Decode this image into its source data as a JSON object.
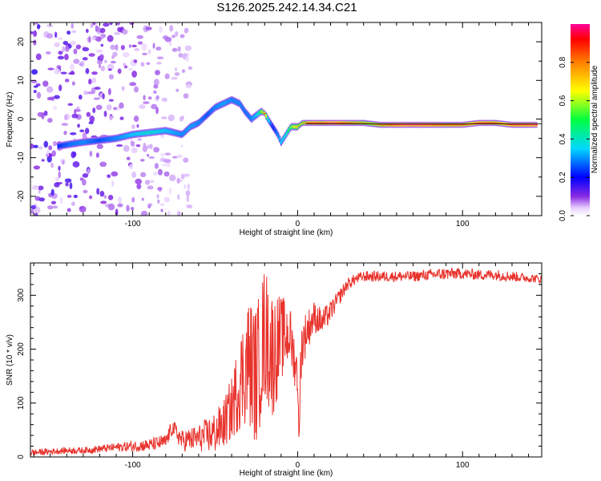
{
  "chart_data": [
    {
      "type": "heatmap",
      "title": "S126.2025.242.14.34.C21",
      "xlabel": "Height of straight line (km)",
      "ylabel": "Frequency (Hz)",
      "xlim": [
        -162,
        148
      ],
      "ylim": [
        -25,
        25
      ],
      "xticks": [
        -100,
        0,
        100
      ],
      "xtick_labels": [
        "-100",
        "0",
        "100"
      ],
      "yticks": [
        -20,
        -10,
        0,
        10,
        20
      ],
      "ytick_labels": [
        "-20",
        "-10",
        "0",
        "10",
        "20"
      ],
      "colorbar": {
        "label": "Normalized spectral amplitude",
        "range": [
          0,
          1
        ],
        "ticks": [
          0.0,
          0.2,
          0.4,
          0.6,
          0.8
        ],
        "tick_labels": [
          "0.0",
          "0.2",
          "0.4",
          "0.6",
          "0.8"
        ],
        "colormap": "rainbow"
      },
      "ridge": {
        "x": [
          -145,
          -138,
          -130,
          -120,
          -110,
          -100,
          -90,
          -80,
          -70,
          -65,
          -60,
          -55,
          -50,
          -45,
          -40,
          -35,
          -32,
          -28,
          -25,
          -22,
          -20,
          -18,
          -15,
          -12,
          -10,
          -7,
          -4,
          -2,
          0,
          3,
          6,
          10,
          15,
          20,
          25,
          30,
          40,
          50,
          60,
          70,
          80,
          90,
          100,
          110,
          120,
          130,
          140,
          145
        ],
        "freq": [
          -7,
          -6.5,
          -6,
          -5.5,
          -5,
          -4,
          -3.5,
          -3,
          -4,
          -2,
          -1,
          1,
          3,
          4,
          5,
          4,
          2,
          0,
          1,
          2,
          1.5,
          0,
          -2,
          -4,
          -6,
          -4,
          -2,
          -2,
          -2,
          -1,
          -1,
          -1,
          -1,
          -1,
          -1,
          -1,
          -1,
          -1.5,
          -1.5,
          -1.5,
          -1.5,
          -1.5,
          -1.5,
          -1,
          -1,
          -1.5,
          -1.5,
          -1.5
        ],
        "amplitude": [
          0.22,
          0.28,
          0.3,
          0.25,
          0.3,
          0.35,
          0.4,
          0.35,
          0.3,
          0.32,
          0.3,
          0.25,
          0.3,
          0.32,
          0.3,
          0.3,
          0.28,
          0.3,
          0.35,
          0.55,
          0.9,
          0.4,
          0.2,
          0.3,
          0.35,
          0.4,
          0.55,
          0.65,
          0.7,
          0.75,
          0.9,
          0.95,
          0.9,
          1.0,
          0.95,
          0.9,
          0.8,
          0.85,
          0.95,
          1.0,
          0.95,
          0.9,
          0.9,
          0.95,
          0.9,
          0.95,
          0.95,
          1.0
        ]
      },
      "noise_region": {
        "x_from": -162,
        "x_to": -65,
        "amplitude_max": 0.15
      }
    },
    {
      "type": "line",
      "xlabel": "Height of straight line (km)",
      "ylabel": "SNR (10 * v/v)",
      "xlim": [
        -162,
        148
      ],
      "ylim": [
        0,
        360
      ],
      "xticks": [
        -100,
        0,
        100
      ],
      "xtick_labels": [
        "-100",
        "0",
        "100"
      ],
      "yticks": [
        0,
        100,
        200,
        300
      ],
      "ytick_labels": [
        "0",
        "100",
        "200",
        "300"
      ],
      "line_color": "#e8322c",
      "series": [
        {
          "name": "SNR",
          "x": [
            -162,
            -150,
            -140,
            -130,
            -120,
            -110,
            -100,
            -90,
            -80,
            -76,
            -70,
            -60,
            -50,
            -45,
            -40,
            -35,
            -30,
            -25,
            -20,
            -15,
            -10,
            -5,
            0,
            1,
            2,
            5,
            10,
            15,
            20,
            25,
            30,
            35,
            40,
            50,
            60,
            70,
            80,
            90,
            100,
            110,
            120,
            130,
            140,
            148
          ],
          "center": [
            8,
            10,
            12,
            12,
            15,
            18,
            20,
            22,
            28,
            55,
            30,
            35,
            45,
            60,
            90,
            140,
            180,
            150,
            230,
            190,
            220,
            230,
            150,
            30,
            200,
            230,
            260,
            250,
            270,
            295,
            320,
            330,
            335,
            335,
            335,
            335,
            338,
            340,
            340,
            338,
            338,
            335,
            332,
            330
          ],
          "spread": [
            6,
            6,
            6,
            6,
            7,
            8,
            10,
            12,
            14,
            15,
            20,
            25,
            40,
            45,
            60,
            90,
            120,
            130,
            130,
            120,
            80,
            60,
            40,
            20,
            60,
            40,
            30,
            25,
            20,
            15,
            12,
            10,
            10,
            10,
            10,
            10,
            10,
            12,
            10,
            10,
            10,
            10,
            8,
            8
          ]
        }
      ]
    }
  ]
}
